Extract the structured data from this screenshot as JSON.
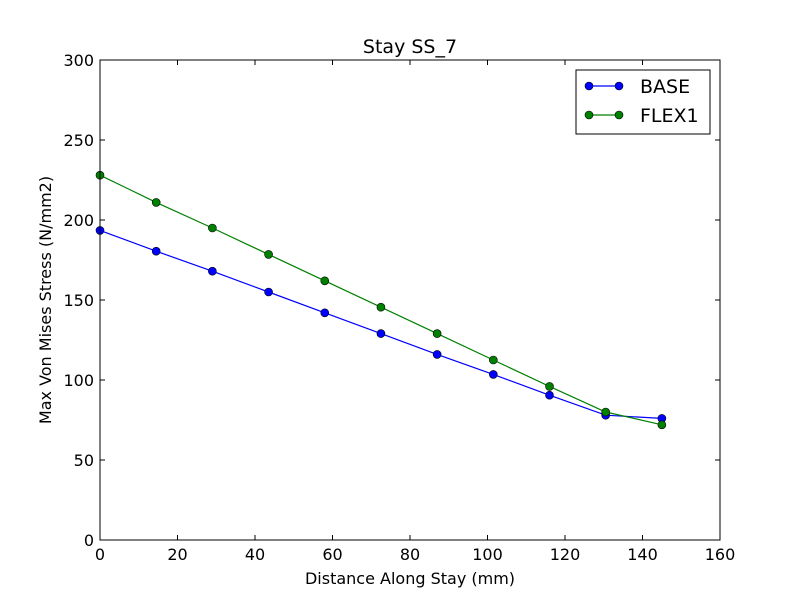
{
  "chart_data": {
    "type": "line",
    "title": "Stay SS_7",
    "xlabel": "Distance Along Stay (mm)",
    "ylabel": "Max Von Mises Stress (N/mm2)",
    "xlim": [
      0,
      160
    ],
    "ylim": [
      0,
      300
    ],
    "xticks": [
      "0",
      "20",
      "40",
      "60",
      "80",
      "100",
      "120",
      "140",
      "160"
    ],
    "yticks": [
      "0",
      "50",
      "100",
      "150",
      "200",
      "250",
      "300"
    ],
    "x": [
      0,
      14.5,
      29,
      43.5,
      58,
      72.5,
      87,
      101.5,
      116,
      130.5,
      145
    ],
    "series": [
      {
        "name": "BASE",
        "color": "#0000ff",
        "values": [
          193.5,
          180.5,
          168,
          155,
          142,
          129,
          116,
          103.5,
          90.5,
          78,
          76
        ]
      },
      {
        "name": "FLEX1",
        "color": "#008000",
        "values": [
          228,
          211,
          195,
          178.5,
          162,
          145.5,
          129,
          112.5,
          96,
          80,
          72
        ]
      }
    ],
    "legend_position": "top-right",
    "grid": false
  }
}
